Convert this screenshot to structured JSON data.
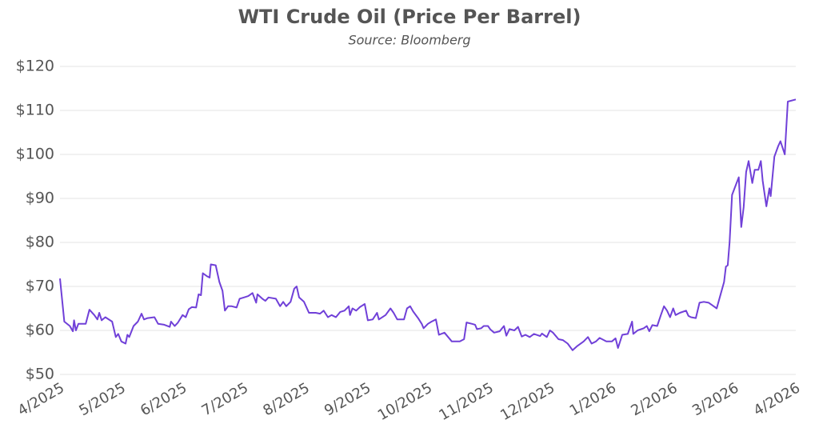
{
  "chart_data": {
    "type": "line",
    "title": "WTI Crude Oil (Price Per Barrel)",
    "subtitle": "Source: Bloomberg",
    "color": "#7040d8",
    "grid": true,
    "xlim": [
      0,
      12
    ],
    "ylim": [
      50,
      120
    ],
    "yticks": [
      {
        "value": 50,
        "label": "$50"
      },
      {
        "value": 60,
        "label": "$60"
      },
      {
        "value": 70,
        "label": "$70"
      },
      {
        "value": 80,
        "label": "$80"
      },
      {
        "value": 90,
        "label": "$90"
      },
      {
        "value": 100,
        "label": "$100"
      },
      {
        "value": 110,
        "label": "$110"
      },
      {
        "value": 120,
        "label": "$120"
      }
    ],
    "xticks": [
      {
        "value": 0,
        "label": "4/2025"
      },
      {
        "value": 1,
        "label": "5/2025"
      },
      {
        "value": 2,
        "label": "6/2025"
      },
      {
        "value": 3,
        "label": "7/2025"
      },
      {
        "value": 4,
        "label": "8/2025"
      },
      {
        "value": 5,
        "label": "9/2025"
      },
      {
        "value": 6,
        "label": "10/2025"
      },
      {
        "value": 7,
        "label": "11/2025"
      },
      {
        "value": 8,
        "label": "12/2025"
      },
      {
        "value": 9,
        "label": "1/2026"
      },
      {
        "value": 10,
        "label": "2/2026"
      },
      {
        "value": 11,
        "label": "3/2026"
      },
      {
        "value": 12,
        "label": "4/2026"
      }
    ],
    "x": [
      0,
      0.07,
      0.16,
      0.21,
      0.23,
      0.26,
      0.3,
      0.42,
      0.48,
      0.56,
      0.61,
      0.64,
      0.68,
      0.74,
      0.85,
      0.91,
      0.95,
      1.0,
      1.07,
      1.1,
      1.13,
      1.2,
      1.27,
      1.33,
      1.37,
      1.43,
      1.54,
      1.6,
      1.7,
      1.79,
      1.81,
      1.87,
      1.92,
      2.0,
      2.05,
      2.1,
      2.15,
      2.22,
      2.26,
      2.3,
      2.33,
      2.4,
      2.44,
      2.46,
      2.54,
      2.6,
      2.65,
      2.69,
      2.74,
      2.8,
      2.88,
      2.93,
      3.0,
      3.07,
      3.14,
      3.2,
      3.22,
      3.3,
      3.35,
      3.4,
      3.52,
      3.59,
      3.64,
      3.69,
      3.76,
      3.82,
      3.86,
      3.9,
      3.98,
      4.06,
      4.17,
      4.24,
      4.3,
      4.37,
      4.43,
      4.5,
      4.57,
      4.64,
      4.71,
      4.73,
      4.77,
      4.83,
      4.89,
      4.97,
      5.02,
      5.1,
      5.17,
      5.2,
      5.31,
      5.39,
      5.44,
      5.5,
      5.61,
      5.66,
      5.71,
      5.76,
      5.84,
      5.9,
      5.93,
      6.0,
      6.06,
      6.13,
      6.18,
      6.27,
      6.33,
      6.39,
      6.52,
      6.59,
      6.63,
      6.72,
      6.77,
      6.8,
      6.87,
      6.91,
      6.98,
      7.02,
      7.08,
      7.17,
      7.24,
      7.28,
      7.33,
      7.41,
      7.47,
      7.53,
      7.59,
      7.66,
      7.73,
      7.83,
      7.86,
      7.94,
      7.99,
      8.04,
      8.13,
      8.2,
      8.28,
      8.36,
      8.44,
      8.54,
      8.61,
      8.67,
      8.74,
      8.8,
      8.91,
      9.0,
      9.06,
      9.1,
      9.17,
      9.26,
      9.33,
      9.35,
      9.42,
      9.52,
      9.57,
      9.61,
      9.66,
      9.74,
      9.8,
      9.85,
      9.9,
      9.95,
      10.0,
      10.04,
      10.11,
      10.21,
      10.25,
      10.29,
      10.37,
      10.43,
      10.5,
      10.58,
      10.66,
      10.71,
      10.76,
      10.83,
      10.86,
      10.89,
      10.92,
      10.96,
      11.02,
      11.07,
      11.11,
      11.15,
      11.19,
      11.23,
      11.29,
      11.33,
      11.39,
      11.43,
      11.46,
      11.52,
      11.57,
      11.59,
      11.65,
      11.71,
      11.75,
      11.82,
      11.87,
      12.0
    ],
    "values": [
      71.8,
      62,
      61,
      59.8,
      62.3,
      60,
      61.5,
      61.5,
      64.7,
      63.5,
      62.5,
      64,
      62.3,
      63,
      62,
      58.5,
      59.2,
      57.5,
      57,
      59,
      58.5,
      61,
      62,
      63.8,
      62.5,
      62.8,
      63,
      61.5,
      61.3,
      60.8,
      62,
      61,
      61.7,
      63.5,
      63,
      64.8,
      65.3,
      65.2,
      68.2,
      68,
      73,
      72.3,
      72,
      75,
      74.8,
      71,
      69,
      64.5,
      65.5,
      65.5,
      65.2,
      67.2,
      67.5,
      67.8,
      68.5,
      66.3,
      68.2,
      67.2,
      66.7,
      67.5,
      67.2,
      65.5,
      66.5,
      65.5,
      66.5,
      69.5,
      70,
      67.5,
      66.5,
      64,
      64,
      63.8,
      64.5,
      63,
      63.5,
      63,
      64.2,
      64.5,
      65.5,
      63.5,
      65,
      64.5,
      65.3,
      66,
      62.3,
      62.5,
      64,
      62.5,
      63.5,
      65,
      64,
      62.5,
      62.5,
      65,
      65.5,
      64.3,
      62.8,
      61.5,
      60.5,
      61.5,
      62,
      62.5,
      59,
      59.5,
      58.5,
      57.5,
      57.5,
      58,
      61.8,
      61.5,
      61.3,
      60.3,
      60.5,
      61,
      61,
      60.2,
      59.5,
      59.8,
      61,
      58.8,
      60.3,
      60,
      60.8,
      58.6,
      59,
      58.5,
      59.2,
      58.7,
      59.3,
      58.5,
      60,
      59.5,
      58,
      57.8,
      57,
      55.5,
      56.5,
      57.5,
      58.5,
      57,
      57.5,
      58.3,
      57.5,
      57.5,
      58.2,
      56,
      59,
      59.2,
      62,
      59.2,
      60,
      60.5,
      61,
      59.8,
      61.2,
      61,
      63.5,
      65.5,
      64.5,
      63,
      65,
      63.5,
      64,
      64.5,
      63.3,
      63,
      62.8,
      66.3,
      66.5,
      66.3,
      65.5,
      65,
      67.5,
      71,
      74.5,
      74.8,
      80,
      90.8,
      93,
      94.8,
      83.5,
      88,
      96,
      98.5,
      93.5,
      96.5,
      96.5,
      98.5,
      94,
      88.2,
      92.3,
      90.5,
      99.5,
      101.8,
      103,
      100,
      112,
      112.5
    ]
  }
}
